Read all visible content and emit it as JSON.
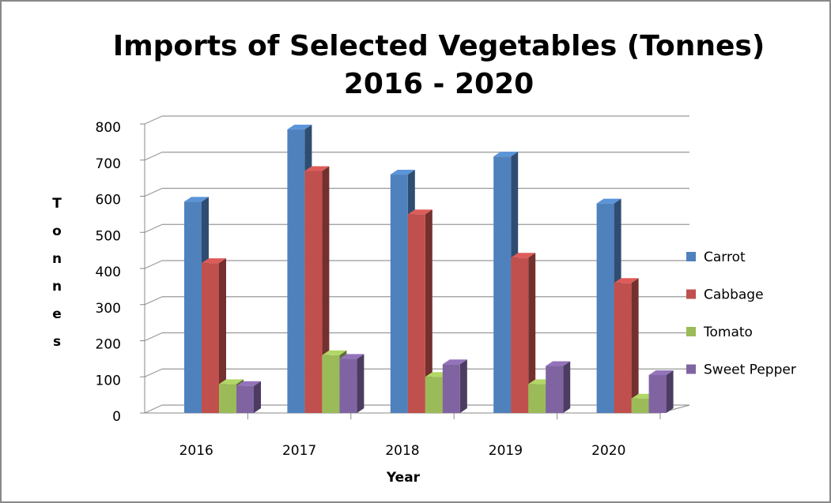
{
  "chart_data": {
    "type": "bar3d",
    "title": [
      "Imports of Selected Vegetables (Tonnes)",
      "2016 - 2020"
    ],
    "x_label": "Year",
    "y_label": "Tonnes",
    "categories": [
      "2016",
      "2017",
      "2018",
      "2019",
      "2020"
    ],
    "series": [
      {
        "name": "Carrot",
        "color": "#4f81bd",
        "values": [
          585,
          785,
          660,
          710,
          580
        ]
      },
      {
        "name": "Cabbage",
        "color": "#c0504d",
        "values": [
          415,
          670,
          550,
          430,
          360
        ]
      },
      {
        "name": "Tomato",
        "color": "#9bbb59",
        "values": [
          80,
          160,
          100,
          80,
          40
        ]
      },
      {
        "name": "Sweet Pepper",
        "color": "#8064a2",
        "values": [
          75,
          150,
          135,
          130,
          105
        ]
      }
    ],
    "ylim": [
      0,
      800
    ],
    "yticks": [
      0,
      100,
      200,
      300,
      400,
      500,
      600,
      700,
      800
    ],
    "grid": true,
    "legend": "right"
  }
}
